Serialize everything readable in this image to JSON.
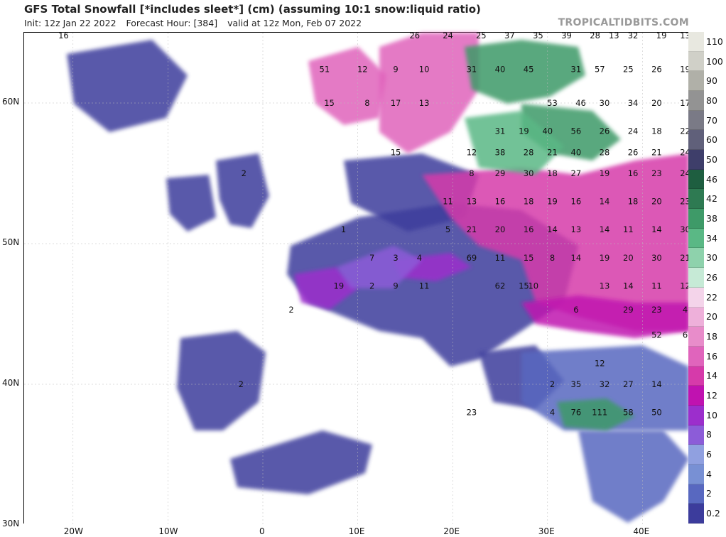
{
  "header": {
    "title": "GFS Total Snowfall [*includes sleet*] (cm) (assuming 10:1 snow:liquid ratio)",
    "init": "Init: 12z Jan 22 2022",
    "forecast_hour": "Forecast Hour: [384]",
    "valid": "valid at 12z Mon, Feb 07 2022",
    "brand": "TROPICALTIDBITS.COM"
  },
  "axes": {
    "lat_ticks": [
      "60N",
      "50N",
      "40N",
      "30N"
    ],
    "lon_ticks": [
      "20W",
      "10W",
      "0",
      "10E",
      "20E",
      "30E",
      "40E"
    ]
  },
  "colorbar": {
    "levels": [
      {
        "label": "110",
        "color": "#e8e8e0"
      },
      {
        "label": "100",
        "color": "#d0d0c8"
      },
      {
        "label": "90",
        "color": "#b0b0a8"
      },
      {
        "label": "80",
        "color": "#939393"
      },
      {
        "label": "70",
        "color": "#7a7a86"
      },
      {
        "label": "60",
        "color": "#60607a"
      },
      {
        "label": "50",
        "color": "#3e3e6a"
      },
      {
        "label": "46",
        "color": "#1e5e40"
      },
      {
        "label": "42",
        "color": "#2e7a52"
      },
      {
        "label": "38",
        "color": "#3e9a68"
      },
      {
        "label": "34",
        "color": "#5ab885"
      },
      {
        "label": "30",
        "color": "#8ed2ac"
      },
      {
        "label": "26",
        "color": "#c6ead6"
      },
      {
        "label": "22",
        "color": "#f4d4ea"
      },
      {
        "label": "20",
        "color": "#eeb0da"
      },
      {
        "label": "18",
        "color": "#e88cca"
      },
      {
        "label": "16",
        "color": "#e064bc"
      },
      {
        "label": "14",
        "color": "#d63aaa"
      },
      {
        "label": "12",
        "color": "#c012b0"
      },
      {
        "label": "10",
        "color": "#9c2ecc"
      },
      {
        "label": "8",
        "color": "#8c5cd8"
      },
      {
        "label": "6",
        "color": "#90a0e0"
      },
      {
        "label": "4",
        "color": "#7890d4"
      },
      {
        "label": "2",
        "color": "#5868c0"
      },
      {
        "label": "0.2",
        "color": "#3c3c9c"
      }
    ]
  },
  "map_labels": [
    {
      "text": "16",
      "lon": -21,
      "lat": 65
    },
    {
      "text": "26",
      "lon": 16,
      "lat": 65
    },
    {
      "text": "24",
      "lon": 19.5,
      "lat": 65
    },
    {
      "text": "25",
      "lon": 23,
      "lat": 65
    },
    {
      "text": "37",
      "lon": 26,
      "lat": 65
    },
    {
      "text": "35",
      "lon": 29,
      "lat": 65
    },
    {
      "text": "39",
      "lon": 32,
      "lat": 65
    },
    {
      "text": "28",
      "lon": 35,
      "lat": 65
    },
    {
      "text": "13",
      "lon": 37,
      "lat": 65
    },
    {
      "text": "32",
      "lon": 39,
      "lat": 65
    },
    {
      "text": "19",
      "lon": 42,
      "lat": 65
    },
    {
      "text": "13",
      "lon": 44.5,
      "lat": 65
    },
    {
      "text": "51",
      "lon": 6.5,
      "lat": 62.5
    },
    {
      "text": "12",
      "lon": 10.5,
      "lat": 62.5
    },
    {
      "text": "9",
      "lon": 14,
      "lat": 62.5
    },
    {
      "text": "10",
      "lon": 17,
      "lat": 62.5
    },
    {
      "text": "31",
      "lon": 22,
      "lat": 62.5
    },
    {
      "text": "40",
      "lon": 25,
      "lat": 62.5
    },
    {
      "text": "45",
      "lon": 28,
      "lat": 62.5
    },
    {
      "text": "31",
      "lon": 33,
      "lat": 62.5
    },
    {
      "text": "57",
      "lon": 35.5,
      "lat": 62.5
    },
    {
      "text": "25",
      "lon": 38.5,
      "lat": 62.5
    },
    {
      "text": "26",
      "lon": 41.5,
      "lat": 62.5
    },
    {
      "text": "19",
      "lon": 44.5,
      "lat": 62.5
    },
    {
      "text": "15",
      "lon": 7,
      "lat": 60
    },
    {
      "text": "8",
      "lon": 11,
      "lat": 60
    },
    {
      "text": "17",
      "lon": 14,
      "lat": 60
    },
    {
      "text": "13",
      "lon": 17,
      "lat": 60
    },
    {
      "text": "53",
      "lon": 30.5,
      "lat": 60
    },
    {
      "text": "46",
      "lon": 33.5,
      "lat": 60
    },
    {
      "text": "30",
      "lon": 36,
      "lat": 60
    },
    {
      "text": "34",
      "lon": 39,
      "lat": 60
    },
    {
      "text": "20",
      "lon": 41.5,
      "lat": 60
    },
    {
      "text": "17",
      "lon": 44.5,
      "lat": 60
    },
    {
      "text": "31",
      "lon": 25,
      "lat": 58
    },
    {
      "text": "19",
      "lon": 27.5,
      "lat": 58
    },
    {
      "text": "40",
      "lon": 30,
      "lat": 58
    },
    {
      "text": "56",
      "lon": 33,
      "lat": 58
    },
    {
      "text": "26",
      "lon": 36,
      "lat": 58
    },
    {
      "text": "24",
      "lon": 39,
      "lat": 58
    },
    {
      "text": "18",
      "lon": 41.5,
      "lat": 58
    },
    {
      "text": "22",
      "lon": 44.5,
      "lat": 58
    },
    {
      "text": "15",
      "lon": 14,
      "lat": 56.5
    },
    {
      "text": "12",
      "lon": 22,
      "lat": 56.5
    },
    {
      "text": "38",
      "lon": 25,
      "lat": 56.5
    },
    {
      "text": "28",
      "lon": 28,
      "lat": 56.5
    },
    {
      "text": "21",
      "lon": 30.5,
      "lat": 56.5
    },
    {
      "text": "40",
      "lon": 33,
      "lat": 56.5
    },
    {
      "text": "28",
      "lon": 36,
      "lat": 56.5
    },
    {
      "text": "26",
      "lon": 39,
      "lat": 56.5
    },
    {
      "text": "21",
      "lon": 41.5,
      "lat": 56.5
    },
    {
      "text": "24",
      "lon": 44.5,
      "lat": 56.5
    },
    {
      "text": "2",
      "lon": -2,
      "lat": 55
    },
    {
      "text": "8",
      "lon": 22,
      "lat": 55
    },
    {
      "text": "29",
      "lon": 25,
      "lat": 55
    },
    {
      "text": "30",
      "lon": 28,
      "lat": 55
    },
    {
      "text": "18",
      "lon": 30.5,
      "lat": 55
    },
    {
      "text": "27",
      "lon": 33,
      "lat": 55
    },
    {
      "text": "19",
      "lon": 36,
      "lat": 55
    },
    {
      "text": "16",
      "lon": 39,
      "lat": 55
    },
    {
      "text": "23",
      "lon": 41.5,
      "lat": 55
    },
    {
      "text": "24",
      "lon": 44.5,
      "lat": 55
    },
    {
      "text": "11",
      "lon": 19.5,
      "lat": 53
    },
    {
      "text": "13",
      "lon": 22,
      "lat": 53
    },
    {
      "text": "16",
      "lon": 25,
      "lat": 53
    },
    {
      "text": "18",
      "lon": 28,
      "lat": 53
    },
    {
      "text": "19",
      "lon": 30.5,
      "lat": 53
    },
    {
      "text": "16",
      "lon": 33,
      "lat": 53
    },
    {
      "text": "14",
      "lon": 36,
      "lat": 53
    },
    {
      "text": "18",
      "lon": 39,
      "lat": 53
    },
    {
      "text": "20",
      "lon": 41.5,
      "lat": 53
    },
    {
      "text": "23",
      "lon": 44.5,
      "lat": 53
    },
    {
      "text": "1",
      "lon": 8.5,
      "lat": 51
    },
    {
      "text": "5",
      "lon": 19.5,
      "lat": 51
    },
    {
      "text": "21",
      "lon": 22,
      "lat": 51
    },
    {
      "text": "20",
      "lon": 25,
      "lat": 51
    },
    {
      "text": "16",
      "lon": 28,
      "lat": 51
    },
    {
      "text": "14",
      "lon": 30.5,
      "lat": 51
    },
    {
      "text": "13",
      "lon": 33,
      "lat": 51
    },
    {
      "text": "14",
      "lon": 36,
      "lat": 51
    },
    {
      "text": "11",
      "lon": 38.5,
      "lat": 51
    },
    {
      "text": "14",
      "lon": 41.5,
      "lat": 51
    },
    {
      "text": "30",
      "lon": 44.5,
      "lat": 51
    },
    {
      "text": "7",
      "lon": 11.5,
      "lat": 49
    },
    {
      "text": "3",
      "lon": 14,
      "lat": 49
    },
    {
      "text": "4",
      "lon": 16.5,
      "lat": 49
    },
    {
      "text": "69",
      "lon": 22,
      "lat": 49
    },
    {
      "text": "11",
      "lon": 25,
      "lat": 49
    },
    {
      "text": "15",
      "lon": 28,
      "lat": 49
    },
    {
      "text": "8",
      "lon": 30.5,
      "lat": 49
    },
    {
      "text": "14",
      "lon": 33,
      "lat": 49
    },
    {
      "text": "19",
      "lon": 36,
      "lat": 49
    },
    {
      "text": "20",
      "lon": 38.5,
      "lat": 49
    },
    {
      "text": "30",
      "lon": 41.5,
      "lat": 49
    },
    {
      "text": "21",
      "lon": 44.5,
      "lat": 49
    },
    {
      "text": "19",
      "lon": 8,
      "lat": 47
    },
    {
      "text": "2",
      "lon": 11.5,
      "lat": 47
    },
    {
      "text": "9",
      "lon": 14,
      "lat": 47
    },
    {
      "text": "11",
      "lon": 17,
      "lat": 47
    },
    {
      "text": "62",
      "lon": 25,
      "lat": 47
    },
    {
      "text": "15",
      "lon": 27.5,
      "lat": 47
    },
    {
      "text": "10",
      "lon": 28.5,
      "lat": 47
    },
    {
      "text": "13",
      "lon": 36,
      "lat": 47
    },
    {
      "text": "14",
      "lon": 38.5,
      "lat": 47
    },
    {
      "text": "11",
      "lon": 41.5,
      "lat": 47
    },
    {
      "text": "12",
      "lon": 44.5,
      "lat": 47
    },
    {
      "text": "2",
      "lon": 3,
      "lat": 45.3
    },
    {
      "text": "6",
      "lon": 33,
      "lat": 45.3
    },
    {
      "text": "29",
      "lon": 38.5,
      "lat": 45.3
    },
    {
      "text": "23",
      "lon": 41.5,
      "lat": 45.3
    },
    {
      "text": "4",
      "lon": 44.5,
      "lat": 45.3
    },
    {
      "text": "52",
      "lon": 41.5,
      "lat": 43.5
    },
    {
      "text": "6",
      "lon": 44.5,
      "lat": 43.5
    },
    {
      "text": "12",
      "lon": 35.5,
      "lat": 41.5
    },
    {
      "text": "2",
      "lon": 30.5,
      "lat": 40
    },
    {
      "text": "35",
      "lon": 33,
      "lat": 40
    },
    {
      "text": "32",
      "lon": 36,
      "lat": 40
    },
    {
      "text": "27",
      "lon": 38.5,
      "lat": 40
    },
    {
      "text": "14",
      "lon": 41.5,
      "lat": 40
    },
    {
      "text": "2",
      "lon": -2.3,
      "lat": 40
    },
    {
      "text": "23",
      "lon": 22,
      "lat": 38
    },
    {
      "text": "4",
      "lon": 30.5,
      "lat": 38
    },
    {
      "text": "76",
      "lon": 33,
      "lat": 38
    },
    {
      "text": "111",
      "lon": 35.5,
      "lat": 38
    },
    {
      "text": "58",
      "lon": 38.5,
      "lat": 38
    },
    {
      "text": "50",
      "lon": 41.5,
      "lat": 38
    }
  ]
}
